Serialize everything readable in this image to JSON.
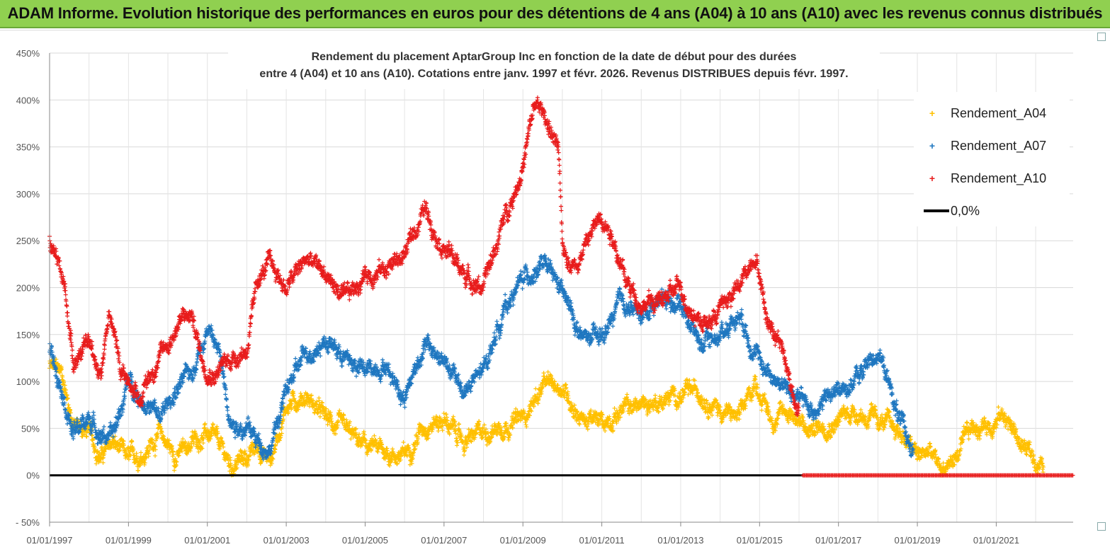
{
  "banner": {
    "title": "ADAM Informe. Evolution historique des performances en euros pour des détentions de 4 ans (A04) à 10 ans (A10) avec les revenus connus distribués"
  },
  "chart_data": {
    "type": "scatter",
    "title_line1": "Rendement du placement AptarGroup Inc en fonction de la date de début pour des durées",
    "title_line2": "entre 4 (A04) et 10 ans (A10).  Cotations entre janv. 1997 et févr. 2026. Revenus DISTRIBUES depuis févr. 1997.",
    "x_range": [
      1997.0,
      2022.95
    ],
    "y_range": [
      -50,
      450
    ],
    "y_ticks": [
      "450%",
      "400%",
      "350%",
      "300%",
      "250%",
      "200%",
      "150%",
      "100%",
      "50%",
      "0%",
      "- 50%"
    ],
    "y_tick_values": [
      450,
      400,
      350,
      300,
      250,
      200,
      150,
      100,
      50,
      0,
      -50
    ],
    "x_ticks": [
      "01/01/1997",
      "01/01/1999",
      "01/01/2001",
      "01/01/2003",
      "01/01/2005",
      "01/01/2007",
      "01/01/2009",
      "01/01/2011",
      "01/01/2013",
      "01/01/2015",
      "01/01/2017",
      "01/01/2019",
      "01/01/2021"
    ],
    "x_tick_values": [
      1997,
      1999,
      2001,
      2003,
      2005,
      2007,
      2009,
      2011,
      2013,
      2015,
      2017,
      2019,
      2021
    ],
    "zero_line_label": "0,0%",
    "series": [
      {
        "name": "Rendement_A04",
        "color": "#ffc000",
        "end": 2022.2,
        "x": [
          1997.0,
          1997.3,
          1997.6,
          1998.0,
          1998.3,
          1998.6,
          1999.0,
          1999.4,
          1999.8,
          2000.2,
          2000.6,
          2001.0,
          2001.3,
          2001.6,
          2002.0,
          2002.3,
          2002.6,
          2003.0,
          2003.5,
          2004.0,
          2004.5,
          2005.0,
          2005.5,
          2006.0,
          2006.5,
          2007.0,
          2007.5,
          2008.0,
          2008.5,
          2009.0,
          2009.5,
          2010.0,
          2010.5,
          2011.0,
          2011.5,
          2012.0,
          2012.5,
          2013.0,
          2013.5,
          2014.0,
          2014.5,
          2014.9,
          2015.3,
          2015.8,
          2016.2,
          2016.6,
          2017.0,
          2017.4,
          2017.8,
          2018.2,
          2018.6,
          2019.0,
          2019.3,
          2019.6,
          2020.0,
          2020.4,
          2020.8,
          2021.2,
          2021.6,
          2022.0,
          2022.2
        ],
        "y": [
          115,
          110,
          55,
          45,
          20,
          35,
          15,
          25,
          45,
          20,
          35,
          45,
          30,
          10,
          20,
          30,
          15,
          75,
          85,
          60,
          45,
          30,
          25,
          20,
          55,
          60,
          35,
          45,
          55,
          60,
          95,
          95,
          60,
          55,
          70,
          75,
          80,
          85,
          90,
          70,
          60,
          100,
          60,
          70,
          45,
          55,
          60,
          70,
          60,
          55,
          45,
          20,
          25,
          5,
          20,
          50,
          55,
          65,
          35,
          15,
          10
        ]
      },
      {
        "name": "Rendement_A07",
        "color": "#1f77c0",
        "end": 2018.9,
        "x": [
          1997.0,
          1997.3,
          1997.6,
          1998.0,
          1998.3,
          1998.6,
          1999.0,
          1999.4,
          1999.8,
          2000.2,
          2000.6,
          2001.0,
          2001.3,
          2001.6,
          2002.0,
          2002.3,
          2002.6,
          2003.0,
          2003.5,
          2004.0,
          2004.5,
          2005.0,
          2005.5,
          2006.0,
          2006.5,
          2007.0,
          2007.5,
          2008.0,
          2008.5,
          2009.0,
          2009.5,
          2010.0,
          2010.5,
          2011.0,
          2011.5,
          2012.0,
          2012.5,
          2013.0,
          2013.5,
          2014.0,
          2014.5,
          2015.0,
          2015.5,
          2015.9,
          2016.3,
          2016.8,
          2017.2,
          2017.6,
          2018.0,
          2018.4,
          2018.7,
          2018.9
        ],
        "y": [
          135,
          100,
          45,
          60,
          45,
          40,
          100,
          80,
          60,
          90,
          110,
          160,
          130,
          60,
          50,
          35,
          30,
          90,
          130,
          145,
          125,
          110,
          120,
          85,
          140,
          120,
          90,
          110,
          175,
          210,
          225,
          195,
          145,
          145,
          185,
          170,
          190,
          185,
          140,
          150,
          175,
          120,
          100,
          85,
          70,
          85,
          95,
          110,
          135,
          80,
          40,
          30
        ]
      },
      {
        "name": "Rendement_A10",
        "color": "#e81c1c",
        "end": 2016.0,
        "x": [
          1997.0,
          1997.2,
          1997.4,
          1997.6,
          1998.0,
          1998.3,
          1998.5,
          1998.8,
          1999.0,
          1999.3,
          1999.7,
          2000.0,
          2000.3,
          2000.6,
          2000.9,
          2001.2,
          2001.6,
          2002.0,
          2002.3,
          2002.6,
          2003.0,
          2003.5,
          2004.0,
          2004.5,
          2005.0,
          2005.5,
          2006.0,
          2006.5,
          2007.0,
          2007.5,
          2008.0,
          2008.5,
          2009.0,
          2009.3,
          2009.6,
          2009.9,
          2010.0,
          2010.3,
          2010.7,
          2011.0,
          2011.3,
          2011.6,
          2012.0,
          2012.5,
          2013.0,
          2013.3,
          2013.7,
          2014.0,
          2014.5,
          2014.9,
          2015.2,
          2015.5,
          2015.8,
          2016.0
        ],
        "y": [
          250,
          225,
          195,
          125,
          140,
          110,
          175,
          115,
          100,
          85,
          120,
          140,
          165,
          170,
          120,
          110,
          125,
          135,
          210,
          225,
          200,
          230,
          215,
          185,
          215,
          220,
          235,
          285,
          245,
          215,
          200,
          270,
          330,
          395,
          380,
          345,
          240,
          225,
          255,
          280,
          255,
          205,
          185,
          185,
          200,
          175,
          160,
          180,
          200,
          240,
          165,
          150,
          95,
          70
        ]
      }
    ]
  }
}
